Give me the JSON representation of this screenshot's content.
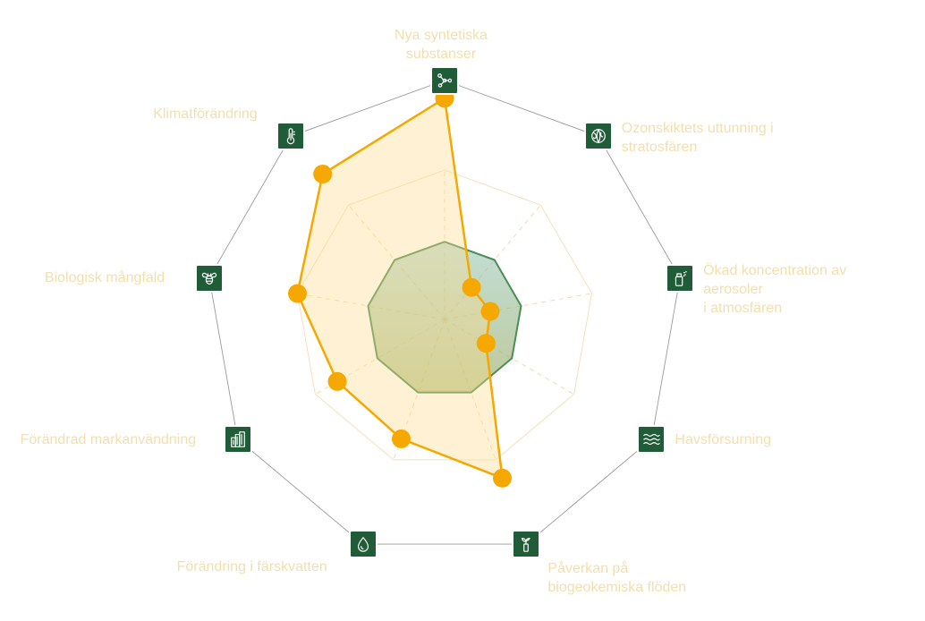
{
  "colors": {
    "icon_bg": "#1f5c37",
    "label": "#f3dfae",
    "outer_ring": "#9a9a9a",
    "inner_ring": "#f5e0bd",
    "spoke": "#f2d9ae",
    "assessment_fill": "#ffdd8f",
    "assessment_stroke": "#f5a800",
    "safe_fill_top": "#8fc2b4",
    "safe_fill_bottom": "#8a9e48",
    "safe_stroke": "#4c8c55"
  },
  "chart_data": {
    "type": "radar",
    "title": "",
    "axes": [
      {
        "label": "Nya syntetiska\nsubstanser",
        "icon": "molecule-icon"
      },
      {
        "label": "Ozonskiktets uttunning i\nstratosfären",
        "icon": "ozone-globe-icon"
      },
      {
        "label": "Ökad koncentration av\naerosoler\ni atmosfären",
        "icon": "aerosol-spray-icon"
      },
      {
        "label": "Havsförsurning",
        "icon": "waves-icon"
      },
      {
        "label": "Påverkan på\nbiogeokemiska flöden",
        "icon": "plant-sprout-icon"
      },
      {
        "label": "Förändring i färskvatten",
        "icon": "water-drop-icon"
      },
      {
        "label": "Förändrad markanvändning",
        "icon": "buildings-icon"
      },
      {
        "label": "Biologisk mångfald",
        "icon": "bee-icon"
      },
      {
        "label": "Klimatförändring",
        "icon": "thermometer-icon"
      }
    ],
    "rings": {
      "count": 2,
      "values": [
        1.0,
        1.6
      ]
    },
    "series": [
      {
        "role": "safe-operating-space",
        "values": [
          0.52,
          0.52,
          0.52,
          0.52,
          0.52,
          0.52,
          0.52,
          0.52,
          0.52
        ]
      },
      {
        "role": "assessment",
        "values": [
          1.48,
          0.28,
          0.31,
          0.32,
          1.13,
          0.85,
          0.83,
          1.0,
          1.27
        ]
      }
    ]
  }
}
